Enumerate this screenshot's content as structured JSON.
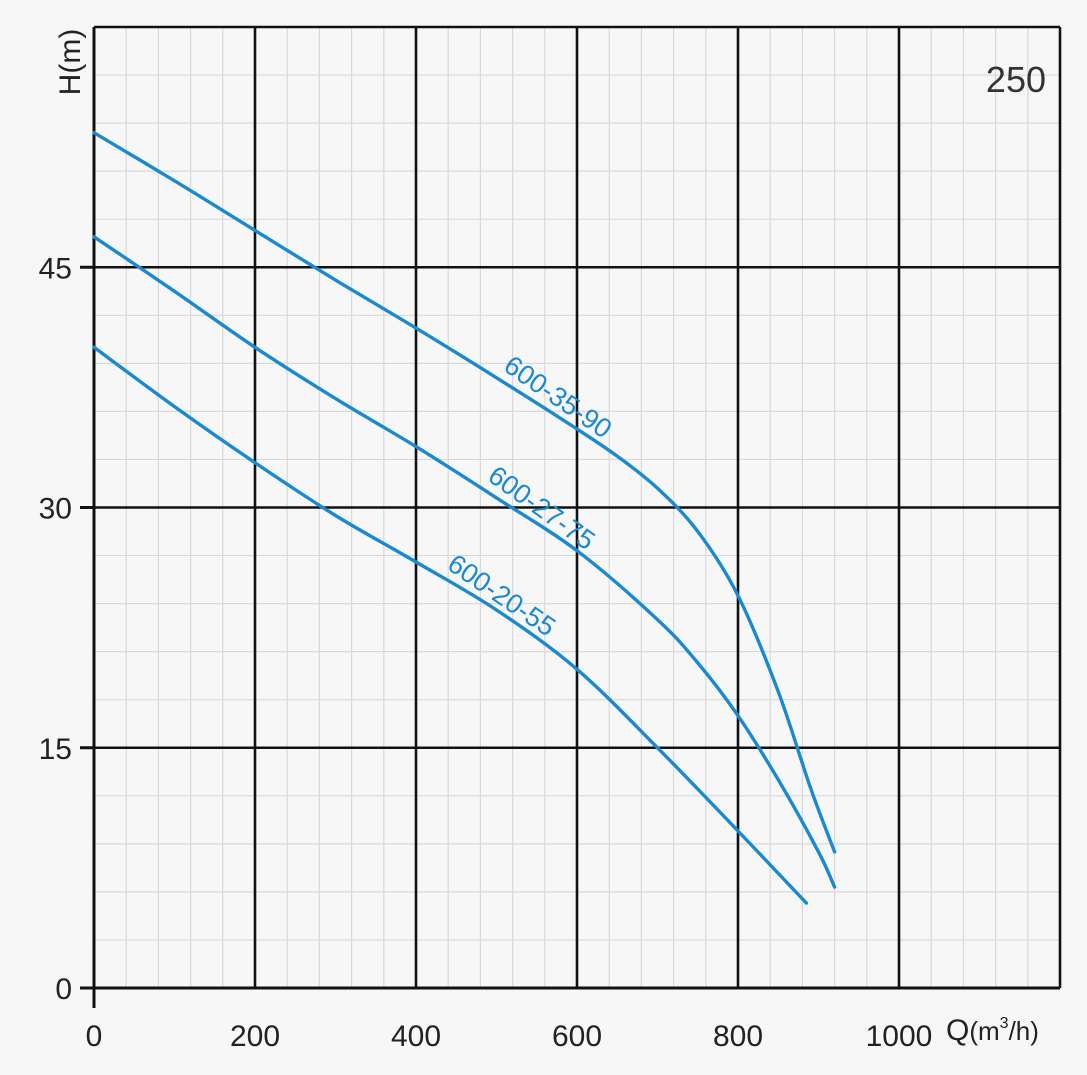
{
  "chart_data": {
    "type": "line",
    "title": "",
    "corner_label": "250",
    "xlabel": "Q",
    "xlabel_unit_pre": "(m",
    "xlabel_unit_sup": "3",
    "xlabel_unit_post": "/h)",
    "ylabel": "H(m)",
    "xlim": [
      0,
      1200
    ],
    "ylim": [
      0,
      60
    ],
    "xticks": [
      0,
      200,
      400,
      600,
      800,
      1000
    ],
    "yticks": [
      0,
      15,
      30,
      45
    ],
    "xtick_labels": [
      "0",
      "200",
      "400",
      "600",
      "800",
      "1000"
    ],
    "ytick_labels": [
      "0",
      "15",
      "30",
      "45"
    ],
    "grid": true,
    "line_color": "#1a8ad0",
    "series": [
      {
        "name": "600-35-90",
        "x": [
          0,
          100,
          200,
          300,
          400,
          500,
          600,
          650,
          700,
          750,
          800,
          850,
          890,
          920
        ],
        "y": [
          53.4,
          50.4,
          47.3,
          44.2,
          41.2,
          38.1,
          34.9,
          33.2,
          31.2,
          28.5,
          24.5,
          18.5,
          12.5,
          8.5
        ]
      },
      {
        "name": "600-27-75",
        "x": [
          0,
          100,
          200,
          300,
          400,
          500,
          600,
          700,
          750,
          800,
          850,
          900,
          920
        ],
        "y": [
          46.9,
          43.5,
          40.0,
          36.8,
          33.8,
          30.6,
          27.3,
          23.0,
          20.3,
          17.0,
          13.0,
          8.5,
          6.3
        ]
      },
      {
        "name": "600-20-55",
        "x": [
          0,
          100,
          200,
          300,
          400,
          500,
          600,
          700,
          800,
          885
        ],
        "y": [
          40.0,
          36.3,
          32.8,
          29.5,
          26.6,
          23.6,
          19.9,
          15.0,
          9.8,
          5.3
        ]
      }
    ]
  }
}
